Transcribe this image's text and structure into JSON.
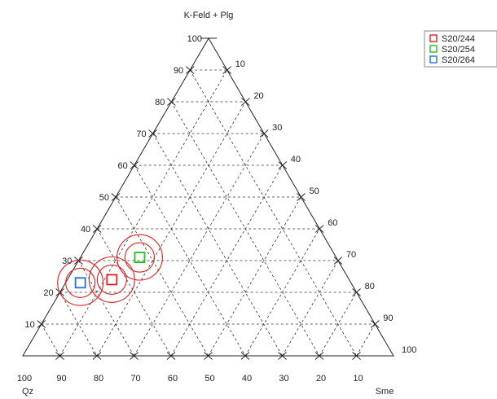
{
  "chart_data": {
    "type": "ternary-scatter",
    "apex_labels": {
      "top": "K-Feld + Plg",
      "left": "Qz",
      "right": "Sme"
    },
    "axes": {
      "left_edge_ticks": [
        "10",
        "20",
        "30",
        "40",
        "50",
        "60",
        "70",
        "80",
        "90",
        "100"
      ],
      "right_edge_ticks": [
        "10",
        "20",
        "30",
        "40",
        "50",
        "60",
        "70",
        "80",
        "90",
        "100"
      ],
      "bottom_edge_ticks": [
        "100",
        "90",
        "80",
        "70",
        "60",
        "50",
        "40",
        "30",
        "20",
        "10"
      ]
    },
    "grid": true,
    "grid_style": "dashed",
    "legend_position": "top-right",
    "series": [
      {
        "name": "S20/244",
        "color": "#e02020",
        "qz": 64,
        "kfeld_plg": 24,
        "sme": 12,
        "circles": [
          1.0,
          1.55
        ]
      },
      {
        "name": "S20/254",
        "color": "#20c020",
        "qz": 53,
        "kfeld_plg": 31,
        "sme": 16,
        "circles": [
          1.0,
          1.55
        ]
      },
      {
        "name": "S20/264",
        "color": "#2070e0",
        "qz": 73,
        "kfeld_plg": 23,
        "sme": 4,
        "circles": [
          1.0,
          1.55
        ]
      }
    ]
  }
}
